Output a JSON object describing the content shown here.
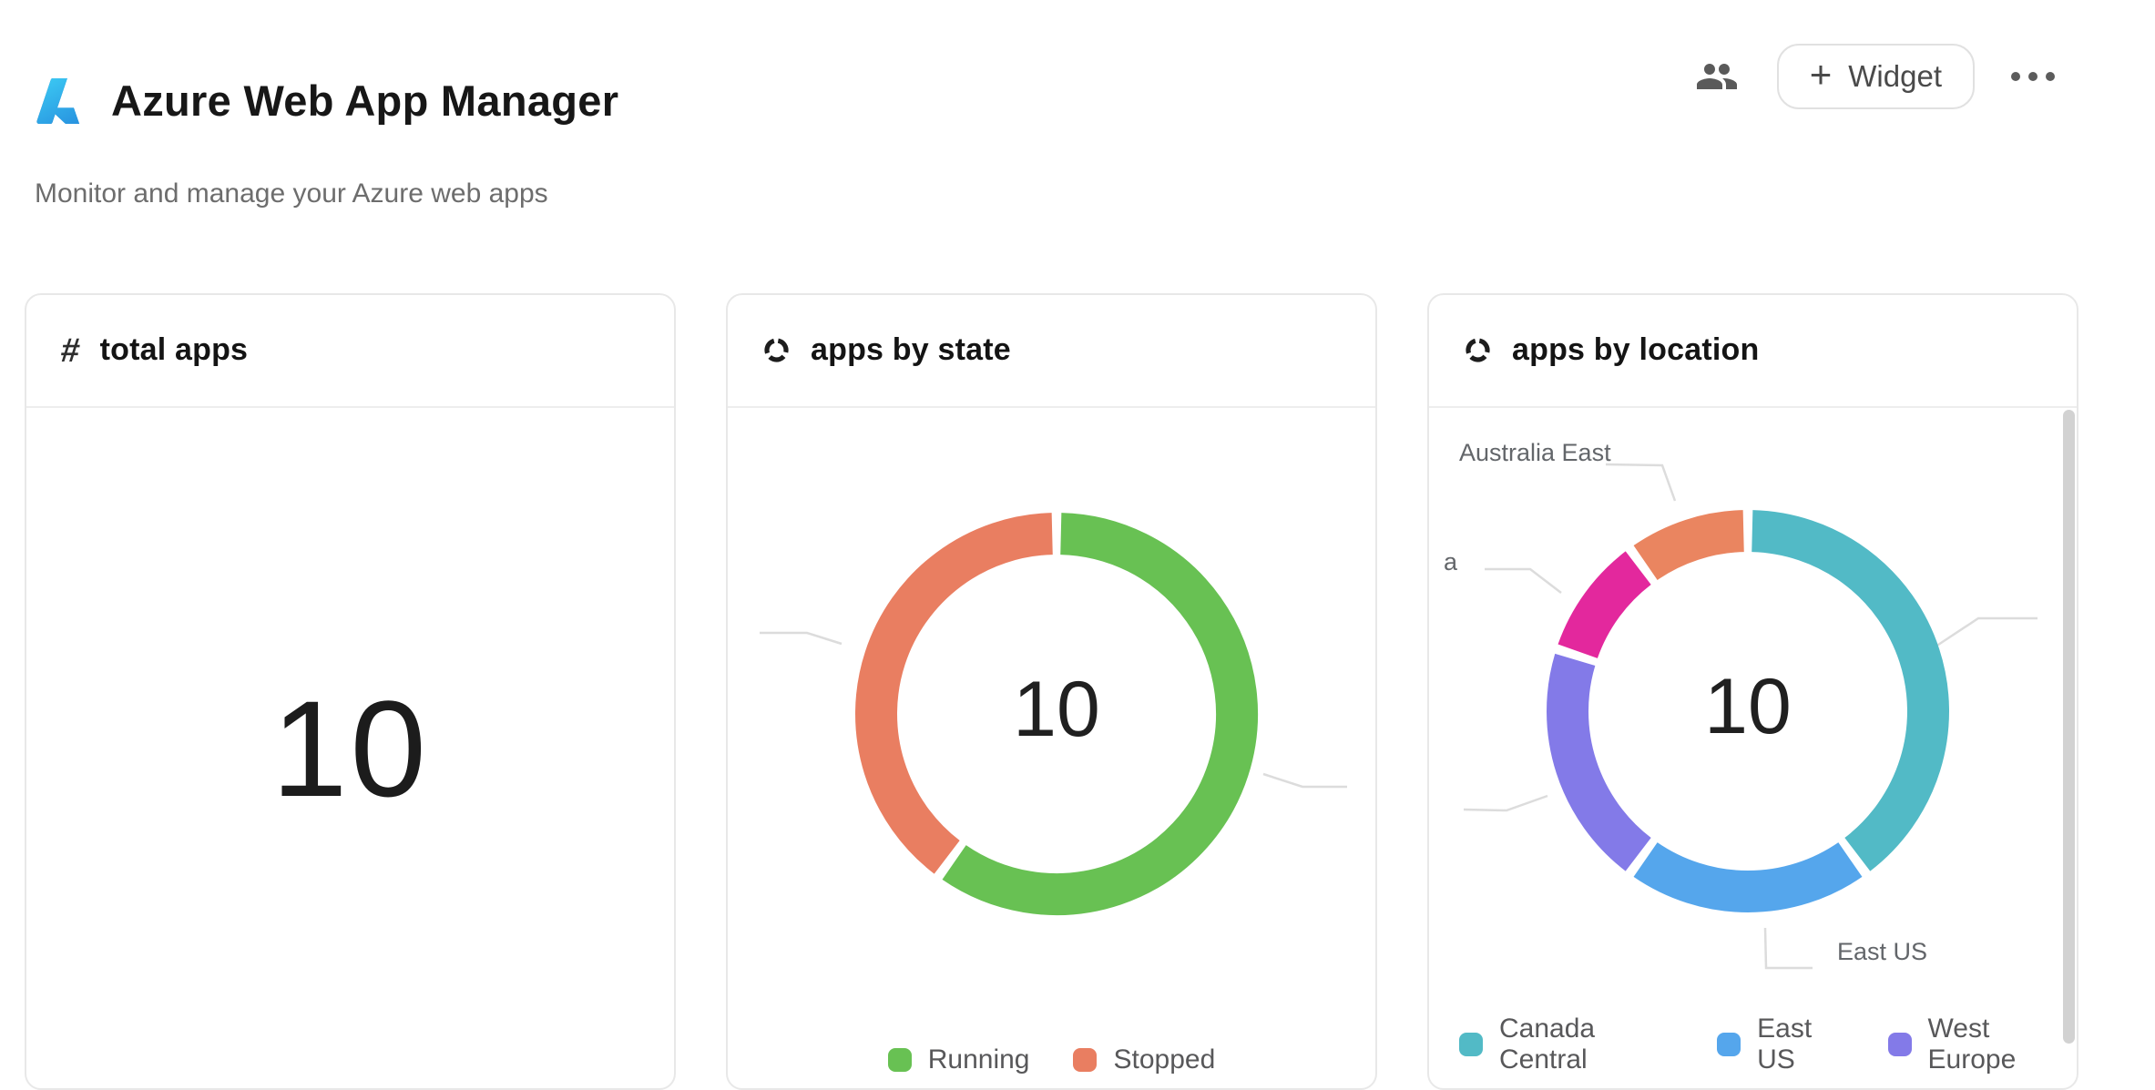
{
  "header": {
    "title": "Azure Web App Manager",
    "subtitle": "Monitor and manage your Azure web apps",
    "widget_button": {
      "plus": "+",
      "label": "Widget"
    }
  },
  "icons": {
    "logo": "azure-logo-icon",
    "users": "users-icon",
    "menu": "ellipsis-icon",
    "hash": "hash-icon",
    "donut": "donut-chart-icon"
  },
  "cards": [
    {
      "title": "total apps",
      "icon": "hash-icon",
      "value": "10"
    },
    {
      "title": "apps by state",
      "icon": "donut-chart-icon"
    },
    {
      "title": "apps by location",
      "icon": "donut-chart-icon"
    }
  ],
  "chart_data": {
    "apps_by_state": {
      "type": "donut",
      "title": "apps by state",
      "center_total": "10",
      "legend_visible": 2,
      "legend_position": "bottom-center",
      "series": [
        {
          "label": "Running",
          "value": 6,
          "color": "#68c153"
        },
        {
          "label": "Stopped",
          "value": 4,
          "color": "#e97e61"
        }
      ]
    },
    "apps_by_location": {
      "type": "donut",
      "title": "apps by location",
      "center_total": "10",
      "legend_visible": 3,
      "legend_position": "bottom-left",
      "series": [
        {
          "label": "Canada Central",
          "value": 4,
          "color": "#52bac6"
        },
        {
          "label": "East US",
          "value": 2,
          "color": "#55a6ec"
        },
        {
          "label": "West Europe",
          "value": 2,
          "color": "#837ae8"
        },
        {
          "label": "a",
          "value": 1,
          "color": "#e3289d",
          "label_truncated": true
        },
        {
          "label": "Australia East",
          "value": 1,
          "color": "#ea8560"
        }
      ]
    }
  }
}
